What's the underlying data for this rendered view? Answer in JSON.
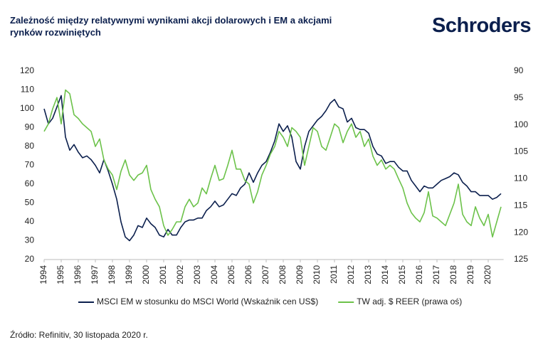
{
  "brand": "Schroders",
  "source": "Źródło: Refinitiv, 30 listopada 2020 r.",
  "chart_data": {
    "type": "line",
    "title": "Zależność między relatywnymi wynikami akcji dolarowych i EM a akcjami rynków rozwiniętych",
    "x": [
      1994,
      1994.25,
      1994.5,
      1994.75,
      1995,
      1995.25,
      1995.5,
      1995.75,
      1996,
      1996.25,
      1996.5,
      1996.75,
      1997,
      1997.25,
      1997.5,
      1997.75,
      1998,
      1998.25,
      1998.5,
      1998.75,
      1999,
      1999.25,
      1999.5,
      1999.75,
      2000,
      2000.25,
      2000.5,
      2000.75,
      2001,
      2001.25,
      2001.5,
      2001.75,
      2002,
      2002.25,
      2002.5,
      2002.75,
      2003,
      2003.25,
      2003.5,
      2003.75,
      2004,
      2004.25,
      2004.5,
      2004.75,
      2005,
      2005.25,
      2005.5,
      2005.75,
      2006,
      2006.25,
      2006.5,
      2006.75,
      2007,
      2007.25,
      2007.5,
      2007.75,
      2008,
      2008.25,
      2008.5,
      2008.75,
      2009,
      2009.25,
      2009.5,
      2009.75,
      2010,
      2010.25,
      2010.5,
      2010.75,
      2011,
      2011.25,
      2011.5,
      2011.75,
      2012,
      2012.25,
      2012.5,
      2012.75,
      2013,
      2013.25,
      2013.5,
      2013.75,
      2014,
      2014.25,
      2014.5,
      2014.75,
      2015,
      2015.25,
      2015.5,
      2015.75,
      2016,
      2016.25,
      2016.5,
      2016.75,
      2017,
      2017.25,
      2017.5,
      2017.75,
      2018,
      2018.25,
      2018.5,
      2018.75,
      2019,
      2019.25,
      2019.5,
      2019.75,
      2020,
      2020.25,
      2020.5,
      2020.75
    ],
    "series": [
      {
        "name": "MSCI EM w stosunku do MSCI World (Wskaźnik cen US$)",
        "color": "#0b1f4d",
        "values": [
          100,
          92,
          95,
          101,
          107,
          85,
          78,
          81,
          77,
          74,
          75,
          73,
          70,
          66,
          73,
          67,
          60,
          52,
          40,
          32,
          30,
          33,
          38,
          37,
          42,
          39,
          37,
          33,
          32,
          36,
          33,
          33,
          37,
          40,
          41,
          41,
          42,
          42,
          46,
          48,
          51,
          48,
          49,
          52,
          55,
          54,
          58,
          60,
          66,
          61,
          66,
          70,
          72,
          77,
          83,
          92,
          88,
          91,
          85,
          72,
          68,
          80,
          88,
          91,
          94,
          96,
          99,
          103,
          105,
          101,
          100,
          93,
          95,
          90,
          89,
          89,
          87,
          80,
          76,
          75,
          71,
          72,
          72,
          69,
          67,
          67,
          62,
          59,
          56,
          59,
          58,
          58,
          60,
          62,
          63,
          64,
          66,
          65,
          61,
          59,
          56,
          56,
          54,
          54,
          54,
          52,
          53,
          55
        ]
      },
      {
        "name": "TW adj. $ REER (prawa oś)",
        "color": "#6cc24a",
        "axis": "y2",
        "values": [
          101.2,
          99.8,
          97,
          94.9,
          99.8,
          93.5,
          94.2,
          98.1,
          98.8,
          99.8,
          100.5,
          101.2,
          104,
          102.6,
          106.5,
          108.2,
          109.3,
          112,
          108.6,
          106.5,
          109.3,
          110.3,
          109.3,
          108.9,
          107.5,
          112,
          113.8,
          115.2,
          118.7,
          120.5,
          119.4,
          118,
          118,
          115.2,
          113.8,
          115.2,
          114.5,
          111.7,
          112.8,
          110,
          107.5,
          110.3,
          110,
          107.5,
          104.7,
          108.2,
          108.2,
          110.3,
          111,
          114.5,
          112.4,
          109.3,
          107.5,
          105.4,
          104,
          101.2,
          102.3,
          104,
          100.5,
          101.2,
          102.3,
          107.5,
          104,
          100.5,
          101.2,
          104,
          104.7,
          102.3,
          99.8,
          100.5,
          103.3,
          101.2,
          99.8,
          102.3,
          101.2,
          104,
          102.6,
          105.8,
          107.5,
          106.5,
          108.2,
          107.5,
          108.2,
          110,
          111.7,
          114.5,
          116.3,
          117.3,
          118,
          116.3,
          112.4,
          116.9,
          117.3,
          118,
          118.7,
          116.6,
          114.5,
          111,
          116.6,
          118,
          118.7,
          115.2,
          117.3,
          118.7,
          116.6,
          120.8,
          118,
          115.2
        ]
      }
    ],
    "xlim": [
      1994,
      2020.9
    ],
    "xticks": [
      1994,
      1995,
      1996,
      1997,
      1998,
      1999,
      2000,
      2001,
      2002,
      2003,
      2004,
      2005,
      2006,
      2007,
      2008,
      2009,
      2010,
      2011,
      2012,
      2013,
      2014,
      2015,
      2016,
      2017,
      2018,
      2019,
      2020
    ],
    "ylim": [
      20,
      120
    ],
    "yticks": [
      20,
      30,
      40,
      50,
      60,
      70,
      80,
      90,
      100,
      110,
      120
    ],
    "y2lim": [
      90,
      125
    ],
    "y2ticks": [
      90,
      95,
      100,
      105,
      110,
      115,
      120,
      125
    ],
    "y2_inverted": true,
    "grid": false
  }
}
